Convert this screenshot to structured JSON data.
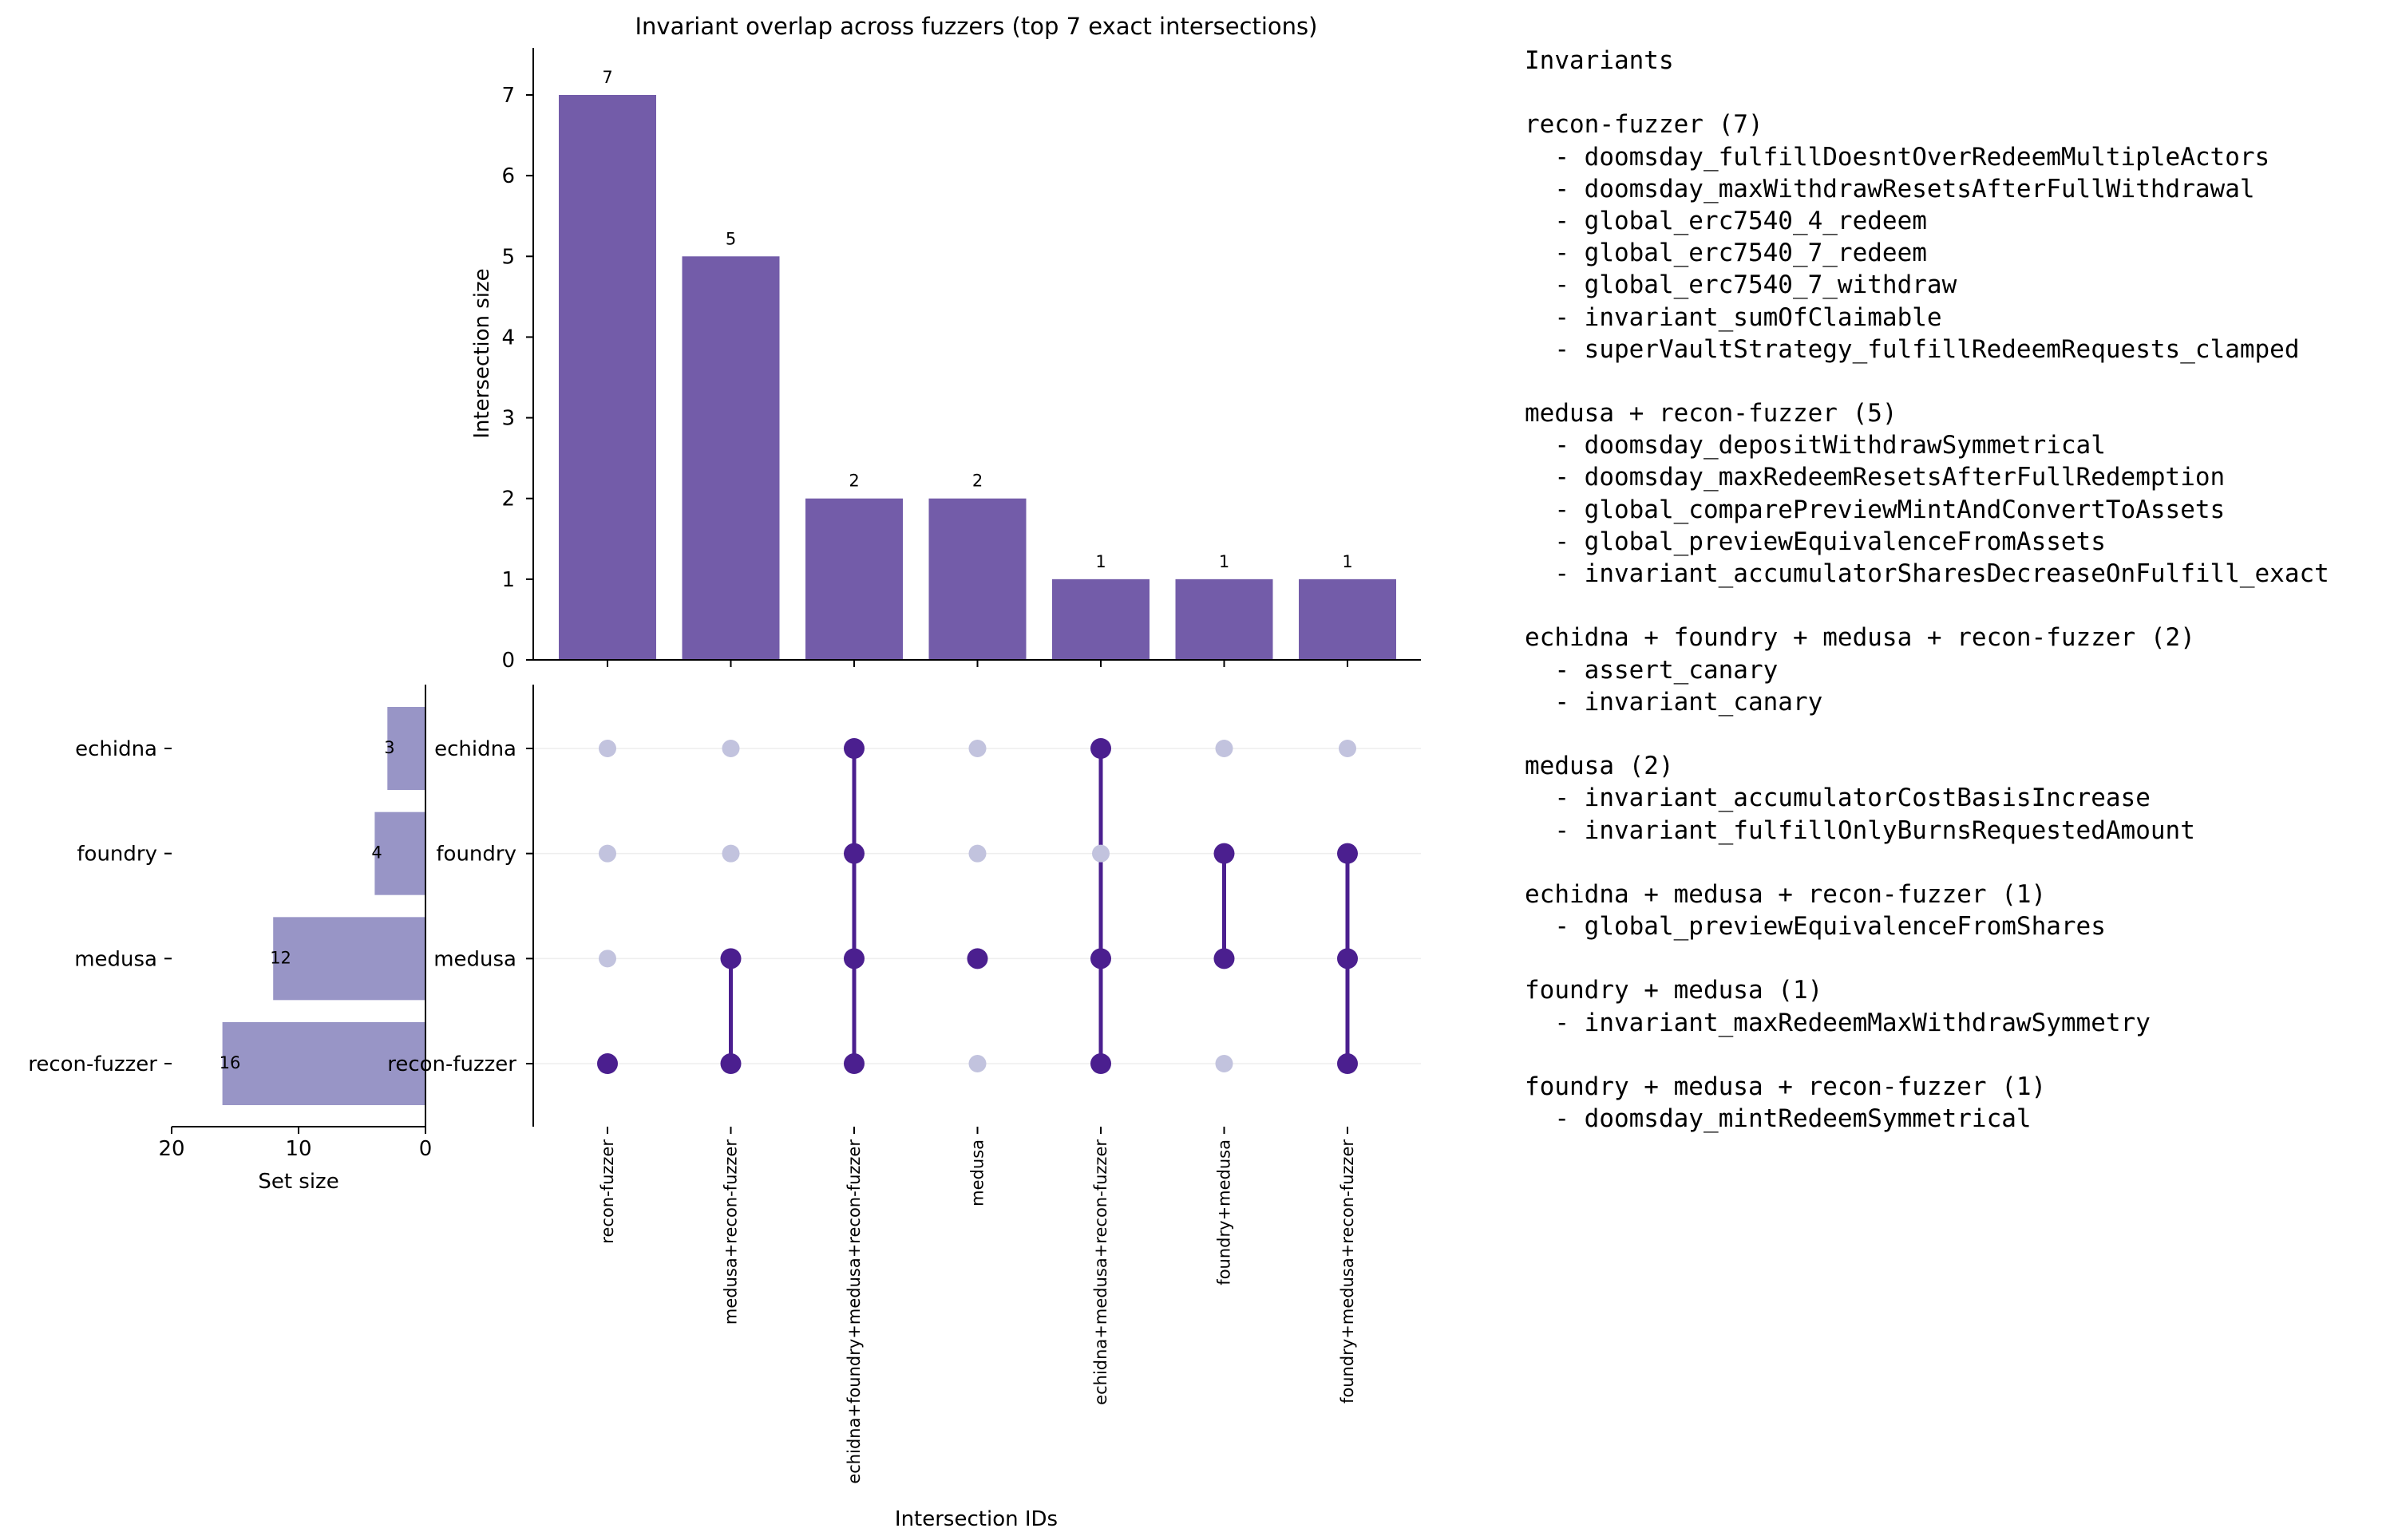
{
  "chart_data": {
    "type": "upset",
    "title": "Invariant overlap across fuzzers (top 7 exact intersections)",
    "ylabel": "Intersection size",
    "xlabel": "Intersection IDs",
    "setsize_label": "Set size",
    "ylim": [
      0,
      7.6
    ],
    "yticks": [
      0,
      1,
      2,
      3,
      4,
      5,
      6,
      7
    ],
    "setsize_xlim": [
      20,
      0
    ],
    "setsize_ticks": [
      20,
      10,
      0
    ],
    "sets": [
      {
        "name": "echidna",
        "size": 3
      },
      {
        "name": "foundry",
        "size": 4
      },
      {
        "name": "medusa",
        "size": 12
      },
      {
        "name": "recon-fuzzer",
        "size": 16
      }
    ],
    "intersections": [
      {
        "id": "recon-fuzzer",
        "members": [
          "recon-fuzzer"
        ],
        "value": 7
      },
      {
        "id": "medusa+recon-fuzzer",
        "members": [
          "medusa",
          "recon-fuzzer"
        ],
        "value": 5
      },
      {
        "id": "echidna+foundry+medusa+recon-fuzzer",
        "members": [
          "echidna",
          "foundry",
          "medusa",
          "recon-fuzzer"
        ],
        "value": 2
      },
      {
        "id": "medusa",
        "members": [
          "medusa"
        ],
        "value": 2
      },
      {
        "id": "echidna+medusa+recon-fuzzer",
        "members": [
          "echidna",
          "medusa",
          "recon-fuzzer"
        ],
        "value": 1
      },
      {
        "id": "foundry+medusa",
        "members": [
          "foundry",
          "medusa"
        ],
        "value": 1
      },
      {
        "id": "foundry+medusa+recon-fuzzer",
        "members": [
          "foundry",
          "medusa",
          "recon-fuzzer"
        ],
        "value": 1
      }
    ],
    "colors": {
      "bar": "#735ca9",
      "set_bar": "#9895c6",
      "dot_active": "#4b1f8f",
      "dot_inactive": "#c2c3de",
      "grid": "#eeeeee"
    }
  },
  "legend": {
    "title": "Invariants",
    "groups": [
      {
        "header": "recon-fuzzer (7)",
        "items": [
          "doomsday_fulfillDoesntOverRedeemMultipleActors",
          "doomsday_maxWithdrawResetsAfterFullWithdrawal",
          "global_erc7540_4_redeem",
          "global_erc7540_7_redeem",
          "global_erc7540_7_withdraw",
          "invariant_sumOfClaimable",
          "superVaultStrategy_fulfillRedeemRequests_clamped"
        ]
      },
      {
        "header": "medusa + recon-fuzzer (5)",
        "items": [
          "doomsday_depositWithdrawSymmetrical",
          "doomsday_maxRedeemResetsAfterFullRedemption",
          "global_comparePreviewMintAndConvertToAssets",
          "global_previewEquivalenceFromAssets",
          "invariant_accumulatorSharesDecreaseOnFulfill_exact"
        ]
      },
      {
        "header": "echidna + foundry + medusa + recon-fuzzer (2)",
        "items": [
          "assert_canary",
          "invariant_canary"
        ]
      },
      {
        "header": "medusa (2)",
        "items": [
          "invariant_accumulatorCostBasisIncrease",
          "invariant_fulfillOnlyBurnsRequestedAmount"
        ]
      },
      {
        "header": "echidna + medusa + recon-fuzzer (1)",
        "items": [
          "global_previewEquivalenceFromShares"
        ]
      },
      {
        "header": "foundry + medusa (1)",
        "items": [
          "invariant_maxRedeemMaxWithdrawSymmetry"
        ]
      },
      {
        "header": "foundry + medusa + recon-fuzzer (1)",
        "items": [
          "doomsday_mintRedeemSymmetrical"
        ]
      }
    ]
  }
}
